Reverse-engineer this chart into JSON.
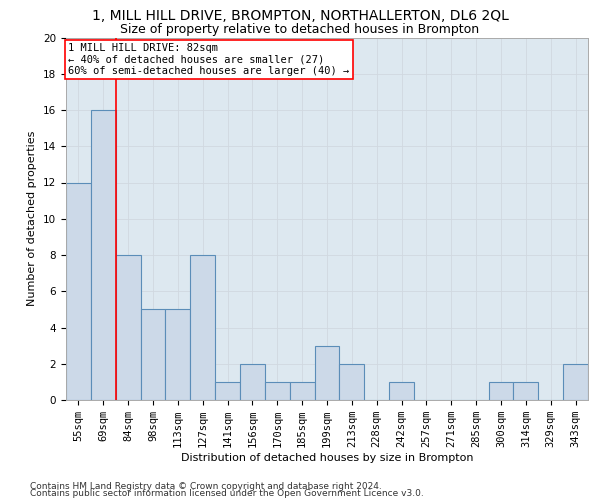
{
  "title": "1, MILL HILL DRIVE, BROMPTON, NORTHALLERTON, DL6 2QL",
  "subtitle": "Size of property relative to detached houses in Brompton",
  "xlabel": "Distribution of detached houses by size in Brompton",
  "ylabel": "Number of detached properties",
  "categories": [
    "55sqm",
    "69sqm",
    "84sqm",
    "98sqm",
    "113sqm",
    "127sqm",
    "141sqm",
    "156sqm",
    "170sqm",
    "185sqm",
    "199sqm",
    "213sqm",
    "228sqm",
    "242sqm",
    "257sqm",
    "271sqm",
    "285sqm",
    "300sqm",
    "314sqm",
    "329sqm",
    "343sqm"
  ],
  "values": [
    12,
    16,
    8,
    5,
    5,
    8,
    1,
    2,
    1,
    1,
    3,
    2,
    0,
    1,
    0,
    0,
    0,
    1,
    1,
    0,
    2
  ],
  "bar_color": "#ccd9e8",
  "bar_edge_color": "#5b8db8",
  "highlight_line_index": 1.5,
  "annotation_line1": "1 MILL HILL DRIVE: 82sqm",
  "annotation_line2": "← 40% of detached houses are smaller (27)",
  "annotation_line3": "60% of semi-detached houses are larger (40) →",
  "ylim": [
    0,
    20
  ],
  "yticks": [
    0,
    2,
    4,
    6,
    8,
    10,
    12,
    14,
    16,
    18,
    20
  ],
  "grid_color": "#d0d8e0",
  "bg_color": "#dde8f0",
  "footer_line1": "Contains HM Land Registry data © Crown copyright and database right 2024.",
  "footer_line2": "Contains public sector information licensed under the Open Government Licence v3.0.",
  "title_fontsize": 10,
  "subtitle_fontsize": 9,
  "axis_label_fontsize": 8,
  "tick_fontsize": 7.5,
  "annotation_fontsize": 7.5,
  "footer_fontsize": 6.5
}
